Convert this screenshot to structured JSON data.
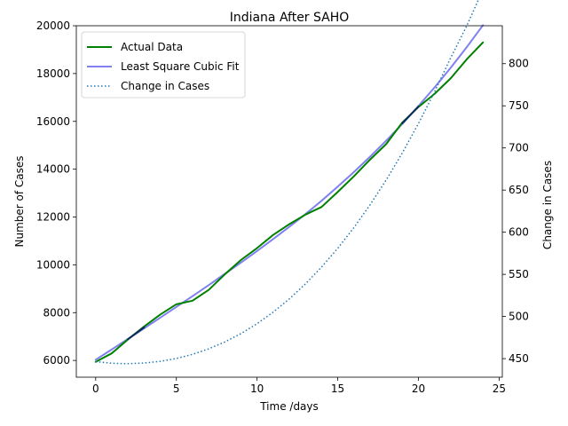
{
  "chart_data": {
    "type": "line",
    "title": "Indiana After SAHO",
    "xlabel": "Time /days",
    "ylabel": "Number of Cases",
    "y2label": "Change in Cases",
    "xlim": [
      -1.2,
      25.2
    ],
    "ylim": [
      5300,
      20000
    ],
    "y2lim": [
      428,
      845
    ],
    "xticks": [
      0,
      5,
      10,
      15,
      20,
      25
    ],
    "xtick_labels": [
      "0",
      "5",
      "10",
      "15",
      "20",
      "25"
    ],
    "yticks": [
      6000,
      8000,
      10000,
      12000,
      14000,
      16000,
      18000,
      20000
    ],
    "ytick_labels": [
      "6000",
      "8000",
      "10000",
      "12000",
      "14000",
      "16000",
      "18000",
      "20000"
    ],
    "y2ticks": [
      450,
      500,
      550,
      600,
      650,
      700,
      750,
      800
    ],
    "y2tick_labels": [
      "450",
      "500",
      "550",
      "600",
      "650",
      "700",
      "750",
      "800"
    ],
    "grid": false,
    "legend_position": "top-left",
    "x": [
      0,
      1,
      2,
      3,
      4,
      5,
      6,
      7,
      8,
      9,
      10,
      11,
      12,
      13,
      14,
      15,
      16,
      17,
      18,
      19,
      20,
      21,
      22,
      23,
      24
    ],
    "series": [
      {
        "name": "Actual Data",
        "axis": "left",
        "color": "#008000",
        "style": "solid",
        "values": [
          5940,
          6300,
          6880,
          7420,
          7920,
          8350,
          8500,
          8950,
          9600,
          10200,
          10700,
          11250,
          11700,
          12100,
          12420,
          13050,
          13700,
          14400,
          15050,
          15950,
          16600,
          17150,
          17800,
          18600,
          19300
        ]
      },
      {
        "name": "Least Square Cubic Fit",
        "axis": "left",
        "color": "#8080f0",
        "style": "solid",
        "values": [
          6030,
          6460,
          6900,
          7340,
          7790,
          8240,
          8690,
          9150,
          9620,
          10090,
          10580,
          11080,
          11590,
          12120,
          12680,
          13270,
          13880,
          14520,
          15190,
          15890,
          16640,
          17420,
          18240,
          19110,
          20020
        ]
      },
      {
        "name": "Change in Cases",
        "axis": "right",
        "color": "#1f77b4",
        "style": "dotted",
        "values": [
          446.5,
          444.5,
          444,
          444.8,
          446.8,
          450.2,
          455.1,
          461.6,
          469.8,
          479.7,
          491.5,
          505.2,
          520.9,
          538.7,
          558.7,
          580.9,
          605.4,
          632.4,
          661.9,
          694,
          728.9,
          766.5,
          806.9,
          845,
          888
        ]
      }
    ]
  },
  "colors": {
    "fit_line": "#8080f0",
    "actual_line": "#008000",
    "overlap_line": "#0a2a5c",
    "change_line": "#1f77b4"
  }
}
